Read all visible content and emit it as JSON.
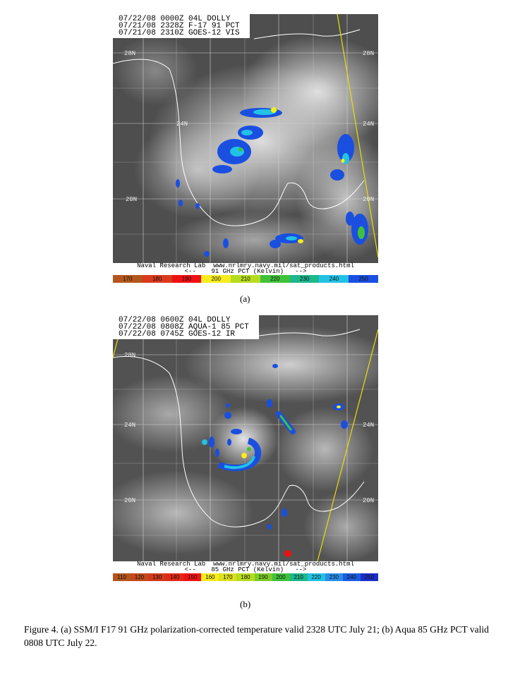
{
  "panel_a": {
    "header": [
      "07/22/08 0000Z 04L DOLLY",
      "07/21/08 2328Z F-17 91 PCT",
      "07/21/08 2310Z GOES-12 VIS"
    ],
    "lat_labels": [
      "28N",
      "24N",
      "20N"
    ],
    "footer_line1": "Naval Research Lab  www.nrlmry.navy.mil/sat_products.html",
    "footer_line2": "<--    91 GHz PCT (Kelvin)   -->",
    "colorbar": [
      {
        "label": "170",
        "color": "#b4561c"
      },
      {
        "label": "180",
        "color": "#d93a1c"
      },
      {
        "label": "190",
        "color": "#ee1111"
      },
      {
        "label": "200",
        "color": "#f6ec1e"
      },
      {
        "label": "210",
        "color": "#b6dc1e"
      },
      {
        "label": "220",
        "color": "#3fc23a"
      },
      {
        "label": "230",
        "color": "#1db88c"
      },
      {
        "label": "240",
        "color": "#22c2e6"
      },
      {
        "label": "250",
        "color": "#1a4fe0"
      }
    ],
    "sublabel": "(a)"
  },
  "panel_b": {
    "header": [
      "07/22/08 0600Z 04L DOLLY",
      "07/22/08 0808Z AQUA-1 85 PCT",
      "07/22/08 0745Z GOES-12 IR"
    ],
    "lat_labels": [
      "28N",
      "24N",
      "20N"
    ],
    "footer_line1": "Naval Research Lab  www.nrlmry.navy.mil/sat_products.html",
    "footer_line2": "<--    85 GHz PCT (Kelvin)   -->",
    "colorbar": [
      {
        "label": "110",
        "color": "#b4561c"
      },
      {
        "label": "120",
        "color": "#c24a1c"
      },
      {
        "label": "130",
        "color": "#d33a1c"
      },
      {
        "label": "140",
        "color": "#e22a18"
      },
      {
        "label": "150",
        "color": "#f01212"
      },
      {
        "label": "160",
        "color": "#f6ec1e"
      },
      {
        "label": "170",
        "color": "#dce01e"
      },
      {
        "label": "180",
        "color": "#b6dc1e"
      },
      {
        "label": "190",
        "color": "#7ccc28"
      },
      {
        "label": "200",
        "color": "#3fc23a"
      },
      {
        "label": "210",
        "color": "#1db88c"
      },
      {
        "label": "220",
        "color": "#22c2e6"
      },
      {
        "label": "230",
        "color": "#2a8ee8"
      },
      {
        "label": "240",
        "color": "#1a5ee0"
      },
      {
        "label": "250",
        "color": "#1a2fc8"
      }
    ],
    "sublabel": "(b)"
  },
  "caption": "Figure 4.  (a) SSM/I F17 91 GHz polarization-corrected  temperature valid 2328 UTC July 21; (b) Aqua 85 GHz PCT valid 0808 UTC July 22."
}
